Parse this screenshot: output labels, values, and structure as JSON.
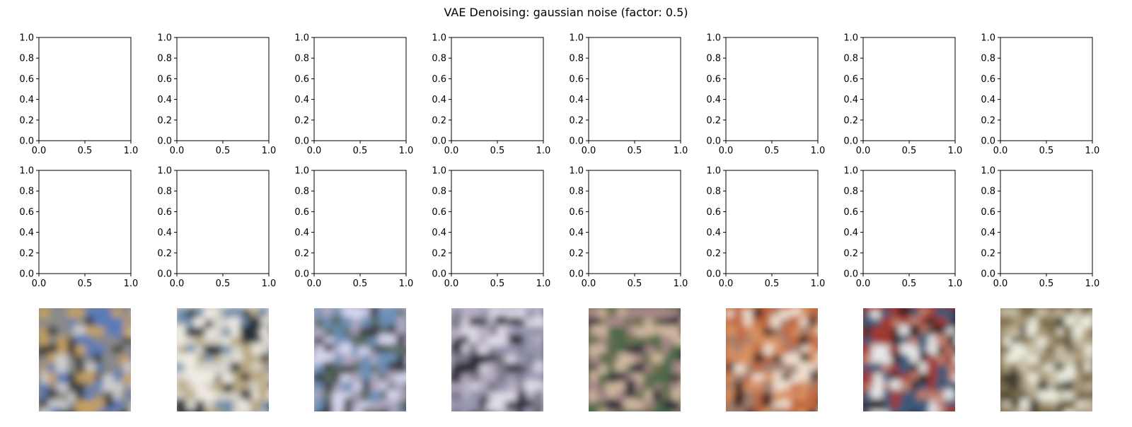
{
  "chart_data": {
    "type": "image-grid",
    "title": "VAE Denoising: gaussian noise (factor: 0.5)",
    "rows": 3,
    "cols": 8,
    "empty_axes_rows": 2,
    "xlim": [
      0.0,
      1.0
    ],
    "ylim": [
      0.0,
      1.0
    ],
    "x_ticks": [
      "0.0",
      "0.5",
      "1.0"
    ],
    "y_ticks": [
      "0.0",
      "0.2",
      "0.4",
      "0.6",
      "0.8",
      "1.0"
    ],
    "images": [
      {
        "name": "denoised-1",
        "palette": [
          "#8a8a8a",
          "#c4a060",
          "#3a3a3a",
          "#5a7ab8",
          "#d0d0d0"
        ],
        "seed": 11
      },
      {
        "name": "denoised-2",
        "palette": [
          "#d8d4cc",
          "#6a8aa8",
          "#222a33",
          "#b8a880",
          "#f0ece4"
        ],
        "seed": 23
      },
      {
        "name": "denoised-3",
        "palette": [
          "#b0a8c0",
          "#6a90b8",
          "#3a3a40",
          "#d8d8f0",
          "#5a6a60"
        ],
        "seed": 37
      },
      {
        "name": "denoised-4",
        "palette": [
          "#b8b0c4",
          "#7a7888",
          "#2a2630",
          "#e0dce8",
          "#9898b0"
        ],
        "seed": 41
      },
      {
        "name": "denoised-5",
        "palette": [
          "#6a7050",
          "#a88888",
          "#2a2a38",
          "#d0b8a0",
          "#486848"
        ],
        "seed": 53
      },
      {
        "name": "denoised-6",
        "palette": [
          "#c06840",
          "#f0e0d0",
          "#3a2020",
          "#a08070",
          "#d89060"
        ],
        "seed": 67
      },
      {
        "name": "denoised-7",
        "palette": [
          "#a03830",
          "#3a5878",
          "#e8e8e8",
          "#2a1a1a",
          "#c08070"
        ],
        "seed": 79
      },
      {
        "name": "denoised-8",
        "palette": [
          "#7a6a48",
          "#c8c0a8",
          "#3a3a30",
          "#a89878",
          "#eeeee0"
        ],
        "seed": 97
      }
    ]
  }
}
